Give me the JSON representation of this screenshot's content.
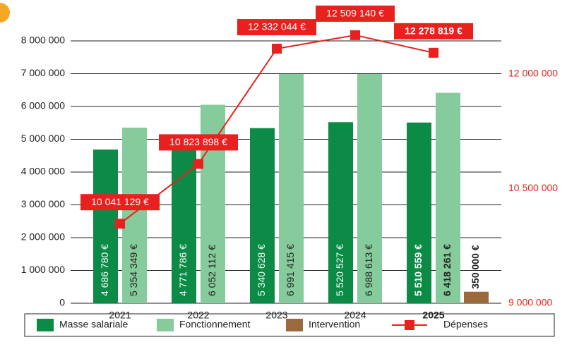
{
  "chart_data": {
    "type": "bar",
    "categories": [
      "2021",
      "2022",
      "2023",
      "2024",
      "2025"
    ],
    "highlight": 4,
    "series": [
      {
        "name": "Masse salariale",
        "color": "#0b8b45",
        "values": [
          4686780,
          4771786,
          5340628,
          5520527,
          5510559
        ],
        "value_labels": [
          "4 686 780 €",
          "4 771 786 €",
          "5 340 628 €",
          "5 520 527 €",
          "5 510 559 €"
        ]
      },
      {
        "name": "Fonctionnement",
        "color": "#86cb9b",
        "values": [
          5354349,
          6052112,
          6991415,
          6988613,
          6418261
        ],
        "value_labels": [
          "5 354 349 €",
          "6 052 112 €",
          "6 991 415 €",
          "6 988 613 €",
          "6 418 261 €"
        ]
      },
      {
        "name": "Intervention",
        "color": "#9b6a3c",
        "values": [
          null,
          null,
          null,
          null,
          350000
        ],
        "value_labels": [
          null,
          null,
          null,
          null,
          "350 000 €"
        ]
      },
      {
        "name": "Dépenses",
        "type": "line",
        "axis": "y2",
        "color": "#e8201e",
        "values": [
          10041129,
          10823898,
          12332044,
          12509140,
          12278819
        ],
        "value_labels": [
          "10 041 129 €",
          "10 823 898 €",
          "12 332 044 €",
          "12 509 140 €",
          "12 278 819 €"
        ]
      }
    ],
    "ylim": [
      0,
      8000000
    ],
    "yticks": [
      0,
      {
        "value": 1000000,
        "label": "1 000 000"
      },
      {
        "value": 2000000,
        "label": "2 000 000"
      },
      {
        "value": 3000000,
        "label": "3 000 000"
      },
      {
        "value": 4000000,
        "label": "4 000 000"
      },
      {
        "value": 5000000,
        "label": "5 000 000"
      },
      {
        "value": 6000000,
        "label": "6 000 000"
      },
      {
        "value": 7000000,
        "label": "7 000 000"
      },
      {
        "value": 8000000,
        "label": "8 000 000"
      }
    ],
    "y2lim": [
      9000000,
      12434000
    ],
    "y2ticks": [
      {
        "value": 9000000,
        "label": "9 000 000"
      },
      {
        "value": 10500000,
        "label": "10 500 000"
      },
      {
        "value": 12000000,
        "label": "12 000 000"
      }
    ],
    "grid": true
  }
}
